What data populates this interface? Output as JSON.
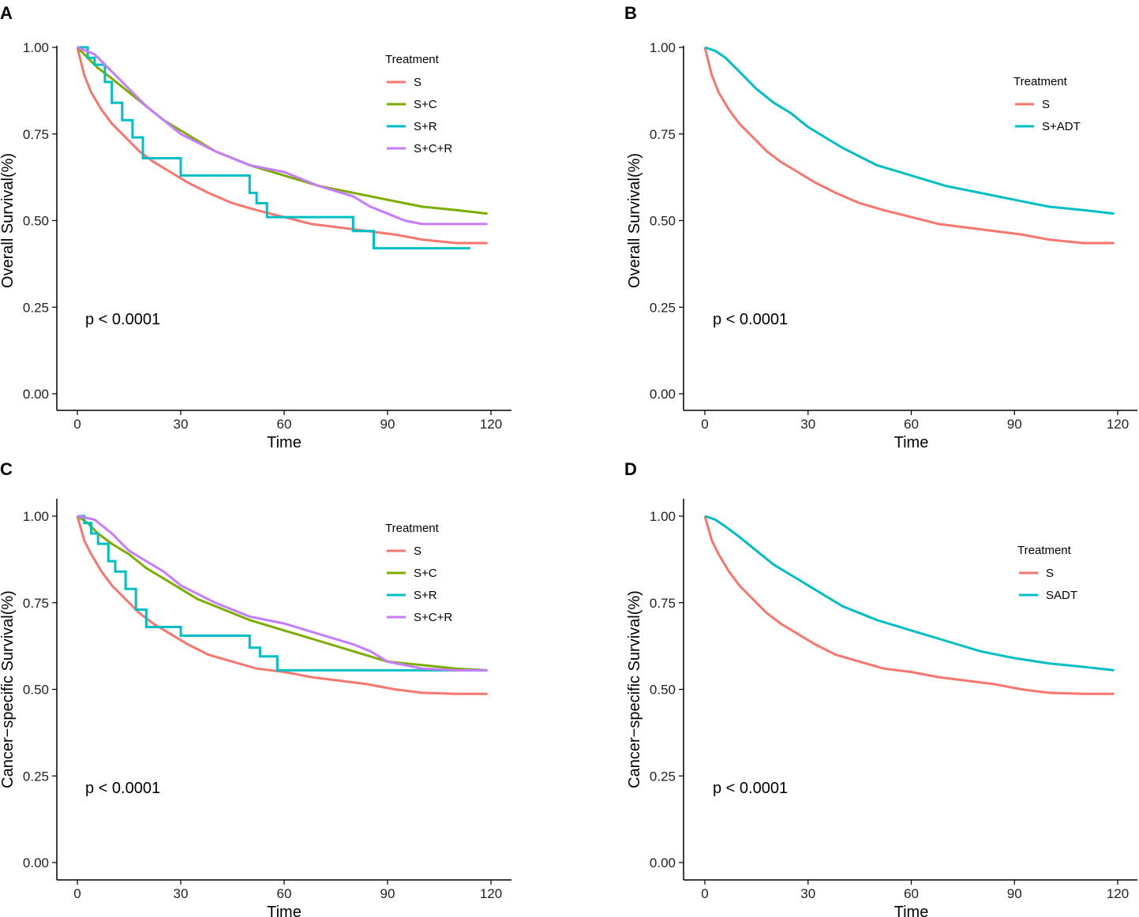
{
  "colors": {
    "S": "#F8766D",
    "S+C": "#7CAE00",
    "S+R": "#00BFC4",
    "S+C+R": "#C77CFF",
    "S+ADT": "#00BFC4",
    "SADT": "#00BFC4"
  },
  "chart_data": [
    {
      "panel": "A",
      "type": "line",
      "title": "",
      "xlabel": "Time",
      "ylabel": "Overall Survival(%)",
      "xlim": [
        0,
        120
      ],
      "ylim": [
        0,
        1
      ],
      "xticks": [
        "0",
        "30",
        "60",
        "90",
        "120"
      ],
      "yticks": [
        "0.00",
        "0.25",
        "0.50",
        "0.75",
        "1.00"
      ],
      "pvalue": "p < 0.0001",
      "legend": {
        "title": "Treatment",
        "position": "top-right"
      },
      "series": [
        {
          "name": "S",
          "step": false,
          "x": [
            0,
            2,
            4,
            7,
            10,
            14,
            18,
            22,
            27,
            32,
            38,
            45,
            52,
            60,
            68,
            76,
            84,
            92,
            100,
            110,
            119
          ],
          "y": [
            1.0,
            0.92,
            0.87,
            0.82,
            0.78,
            0.74,
            0.7,
            0.67,
            0.64,
            0.61,
            0.58,
            0.55,
            0.53,
            0.51,
            0.49,
            0.48,
            0.47,
            0.46,
            0.445,
            0.435,
            0.435
          ]
        },
        {
          "name": "S+C",
          "step": false,
          "x": [
            0,
            3,
            6,
            10,
            15,
            20,
            25,
            30,
            35,
            40,
            50,
            60,
            70,
            80,
            90,
            100,
            110,
            119
          ],
          "y": [
            1.0,
            0.97,
            0.94,
            0.91,
            0.87,
            0.83,
            0.79,
            0.76,
            0.73,
            0.7,
            0.66,
            0.63,
            0.6,
            0.58,
            0.56,
            0.54,
            0.53,
            0.52
          ]
        },
        {
          "name": "S+R",
          "step": true,
          "x": [
            0,
            3,
            5,
            8,
            10,
            13,
            16,
            19,
            25,
            30,
            50,
            52,
            55,
            58,
            80,
            86,
            114
          ],
          "y": [
            1.0,
            0.97,
            0.95,
            0.9,
            0.84,
            0.79,
            0.74,
            0.68,
            0.68,
            0.63,
            0.58,
            0.55,
            0.51,
            0.51,
            0.47,
            0.42,
            0.42
          ]
        },
        {
          "name": "S+C+R",
          "step": false,
          "x": [
            0,
            5,
            10,
            15,
            20,
            25,
            30,
            40,
            50,
            60,
            70,
            80,
            85,
            90,
            95,
            100,
            110,
            119
          ],
          "y": [
            1.0,
            0.98,
            0.93,
            0.88,
            0.83,
            0.79,
            0.75,
            0.7,
            0.66,
            0.64,
            0.6,
            0.57,
            0.54,
            0.52,
            0.5,
            0.49,
            0.49,
            0.49
          ]
        }
      ]
    },
    {
      "panel": "B",
      "type": "line",
      "title": "",
      "xlabel": "Time",
      "ylabel": "Overall Survival(%)",
      "xlim": [
        0,
        120
      ],
      "ylim": [
        0,
        1
      ],
      "xticks": [
        "0",
        "30",
        "60",
        "90",
        "120"
      ],
      "yticks": [
        "0.00",
        "0.25",
        "0.50",
        "0.75",
        "1.00"
      ],
      "pvalue": "p < 0.0001",
      "legend": {
        "title": "Treatment",
        "position": "top-right"
      },
      "series": [
        {
          "name": "S",
          "step": false,
          "x": [
            0,
            2,
            4,
            7,
            10,
            14,
            18,
            22,
            27,
            32,
            38,
            45,
            52,
            60,
            68,
            76,
            84,
            92,
            100,
            110,
            119
          ],
          "y": [
            1.0,
            0.92,
            0.87,
            0.82,
            0.78,
            0.74,
            0.7,
            0.67,
            0.64,
            0.61,
            0.58,
            0.55,
            0.53,
            0.51,
            0.49,
            0.48,
            0.47,
            0.46,
            0.445,
            0.435,
            0.435
          ]
        },
        {
          "name": "S+ADT",
          "step": false,
          "x": [
            0,
            3,
            6,
            10,
            15,
            20,
            25,
            30,
            35,
            40,
            50,
            60,
            70,
            80,
            90,
            100,
            110,
            119
          ],
          "y": [
            1.0,
            0.99,
            0.97,
            0.93,
            0.88,
            0.84,
            0.81,
            0.77,
            0.74,
            0.71,
            0.66,
            0.63,
            0.6,
            0.58,
            0.56,
            0.54,
            0.53,
            0.52
          ]
        }
      ]
    },
    {
      "panel": "C",
      "type": "line",
      "title": "",
      "xlabel": "Time",
      "ylabel": "Cancer−specific Survival(%)",
      "xlim": [
        0,
        120
      ],
      "ylim": [
        0,
        1
      ],
      "xticks": [
        "0",
        "30",
        "60",
        "90",
        "120"
      ],
      "yticks": [
        "0.00",
        "0.25",
        "0.50",
        "0.75",
        "1.00"
      ],
      "pvalue": "p < 0.0001",
      "legend": {
        "title": "Treatment",
        "position": "top-right"
      },
      "series": [
        {
          "name": "S",
          "step": false,
          "x": [
            0,
            2,
            4,
            7,
            10,
            14,
            18,
            22,
            27,
            32,
            38,
            45,
            52,
            60,
            68,
            76,
            84,
            92,
            100,
            110,
            119
          ],
          "y": [
            1.0,
            0.93,
            0.89,
            0.84,
            0.8,
            0.76,
            0.72,
            0.69,
            0.66,
            0.63,
            0.6,
            0.58,
            0.56,
            0.55,
            0.535,
            0.525,
            0.515,
            0.5,
            0.49,
            0.487,
            0.487
          ]
        },
        {
          "name": "S+C",
          "step": false,
          "x": [
            0,
            3,
            6,
            10,
            15,
            20,
            25,
            30,
            35,
            40,
            50,
            60,
            70,
            80,
            90,
            100,
            110,
            119
          ],
          "y": [
            1.0,
            0.98,
            0.95,
            0.92,
            0.89,
            0.85,
            0.82,
            0.79,
            0.76,
            0.74,
            0.7,
            0.67,
            0.64,
            0.61,
            0.58,
            0.57,
            0.56,
            0.555
          ]
        },
        {
          "name": "S+R",
          "step": true,
          "x": [
            0,
            2,
            4,
            6,
            9,
            11,
            14,
            17,
            20,
            30,
            50,
            53,
            58,
            119
          ],
          "y": [
            1.0,
            0.98,
            0.95,
            0.92,
            0.87,
            0.84,
            0.79,
            0.73,
            0.68,
            0.655,
            0.62,
            0.595,
            0.555,
            0.555
          ]
        },
        {
          "name": "S+C+R",
          "step": false,
          "x": [
            0,
            5,
            10,
            15,
            20,
            25,
            30,
            40,
            50,
            60,
            70,
            80,
            85,
            90,
            95,
            100,
            110,
            119
          ],
          "y": [
            1.0,
            0.99,
            0.95,
            0.9,
            0.87,
            0.84,
            0.8,
            0.75,
            0.71,
            0.69,
            0.66,
            0.63,
            0.61,
            0.58,
            0.57,
            0.56,
            0.555,
            0.555
          ]
        }
      ]
    },
    {
      "panel": "D",
      "type": "line",
      "title": "",
      "xlabel": "Time",
      "ylabel": "Cancer−specific Survival(%)",
      "xlim": [
        0,
        120
      ],
      "ylim": [
        0,
        1
      ],
      "xticks": [
        "0",
        "30",
        "60",
        "90",
        "120"
      ],
      "yticks": [
        "0.00",
        "0.25",
        "0.50",
        "0.75",
        "1.00"
      ],
      "pvalue": "p < 0.0001",
      "legend": {
        "title": "Treatment",
        "position": "top-right"
      },
      "series": [
        {
          "name": "S",
          "step": false,
          "x": [
            0,
            2,
            4,
            7,
            10,
            14,
            18,
            22,
            27,
            32,
            38,
            45,
            52,
            60,
            68,
            76,
            84,
            92,
            100,
            110,
            119
          ],
          "y": [
            1.0,
            0.93,
            0.89,
            0.84,
            0.8,
            0.76,
            0.72,
            0.69,
            0.66,
            0.63,
            0.6,
            0.58,
            0.56,
            0.55,
            0.535,
            0.525,
            0.515,
            0.5,
            0.49,
            0.487,
            0.487
          ]
        },
        {
          "name": "SADT",
          "step": false,
          "x": [
            0,
            3,
            6,
            10,
            15,
            20,
            25,
            30,
            35,
            40,
            50,
            60,
            70,
            80,
            90,
            100,
            110,
            119
          ],
          "y": [
            1.0,
            0.99,
            0.97,
            0.94,
            0.9,
            0.86,
            0.83,
            0.8,
            0.77,
            0.74,
            0.7,
            0.67,
            0.64,
            0.61,
            0.59,
            0.575,
            0.565,
            0.555
          ]
        }
      ]
    }
  ]
}
